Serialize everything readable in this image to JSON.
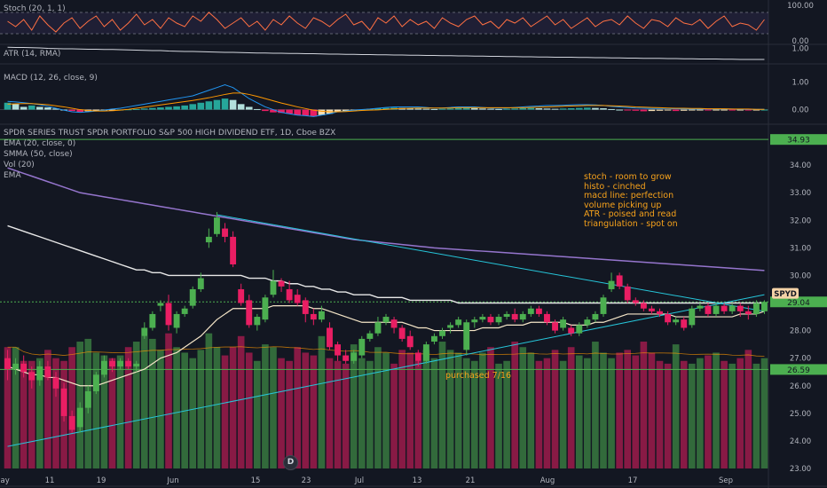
{
  "panes": {
    "stoch": {
      "label": "Stoch (20, 1, 1)",
      "scale": [
        "100.00",
        "0.00"
      ]
    },
    "atr": {
      "label": "ATR (14, RMA)",
      "scale": [
        "1.00"
      ]
    },
    "macd": {
      "label": "MACD (12, 26, close, 9)",
      "scale": [
        "1.00",
        "0.00"
      ]
    }
  },
  "main": {
    "title": "SPDR SERIES TRUST SPDR PORTFOLIO S&P 500 HIGH DIVIDEND ETF, 1D, Cboe BZX",
    "indicators": [
      "EMA (20, close, 0)",
      "SMMA (50, close)",
      "Vol (20)",
      "EMA"
    ],
    "price_ticks": [
      "34.00",
      "33.00",
      "32.00",
      "31.00",
      "30.00",
      "29.00",
      "28.00",
      "27.00",
      "26.00",
      "25.00",
      "24.00",
      "23.00"
    ],
    "levels": {
      "resistance": "34.93",
      "current": "29.04",
      "purchase": "26.59"
    },
    "symbol_tag": "SPYD",
    "annotations": [
      "stoch - room to grow",
      "histo - cinched",
      "macd line: perfection",
      "volume picking up",
      "ATR - poised and read",
      "triangulation - spot on"
    ],
    "purchase_note": "purchased 7/16",
    "event_badge": "D"
  },
  "x_axis": {
    "labels": [
      "May",
      "11",
      "19",
      "Jun",
      "15",
      "23",
      "Jul",
      "13",
      "21",
      "Aug",
      "17",
      "Sep"
    ]
  },
  "colors": {
    "background": "#131722",
    "up": "#4caf50",
    "down": "#e91e63",
    "ema": "#f5e6c8",
    "smma": "#e8e8e8",
    "ema2": "#9575cd",
    "trend": "#26c6da",
    "level": "#4caf50",
    "annotation": "#f7a21b"
  },
  "chart_data": {
    "type": "candlestick",
    "title": "SPDR SERIES TRUST SPDR PORTFOLIO S&P 500 HIGH DIVIDEND ETF, 1D, Cboe BZX",
    "symbol": "SPYD",
    "ylim": [
      23.0,
      35.0
    ],
    "candles": [
      [
        27.0,
        26.6,
        27.3,
        26.2
      ],
      [
        26.6,
        26.8,
        27.0,
        26.4
      ],
      [
        26.8,
        26.5,
        27.1,
        26.3
      ],
      [
        26.5,
        26.2,
        26.7,
        25.9
      ],
      [
        26.2,
        26.7,
        26.9,
        26.0
      ],
      [
        26.7,
        26.3,
        26.9,
        26.2
      ],
      [
        26.3,
        25.9,
        26.5,
        25.6
      ],
      [
        25.9,
        24.9,
        26.1,
        24.7
      ],
      [
        24.9,
        24.4,
        25.1,
        24.3
      ],
      [
        24.5,
        25.2,
        25.4,
        24.3
      ],
      [
        25.2,
        25.8,
        26.0,
        25.0
      ],
      [
        25.8,
        26.4,
        26.5,
        25.7
      ],
      [
        26.4,
        26.9,
        27.1,
        26.3
      ],
      [
        26.9,
        26.7,
        27.0,
        26.5
      ],
      [
        26.7,
        26.9,
        27.0,
        26.6
      ],
      [
        26.9,
        26.7,
        27.0,
        26.6
      ],
      [
        26.7,
        26.8,
        26.9,
        26.5
      ],
      [
        27.8,
        28.1,
        28.3,
        27.7
      ],
      [
        28.1,
        28.6,
        28.7,
        28.0
      ],
      [
        28.9,
        29.0,
        29.1,
        28.7
      ],
      [
        29.0,
        28.2,
        29.3,
        28.0
      ],
      [
        28.1,
        28.6,
        28.7,
        27.9
      ],
      [
        28.6,
        28.8,
        28.9,
        28.5
      ],
      [
        28.9,
        29.5,
        29.6,
        28.8
      ],
      [
        29.5,
        29.9,
        30.1,
        29.4
      ],
      [
        31.2,
        31.4,
        31.7,
        31.0
      ],
      [
        31.5,
        32.1,
        32.3,
        31.4
      ],
      [
        31.7,
        31.4,
        31.9,
        31.2
      ],
      [
        31.4,
        30.4,
        31.6,
        30.3
      ],
      [
        29.5,
        29.0,
        29.7,
        28.9
      ],
      [
        29.1,
        28.2,
        29.3,
        28.1
      ],
      [
        28.2,
        28.5,
        28.6,
        28.0
      ],
      [
        28.4,
        29.2,
        29.3,
        28.3
      ],
      [
        29.3,
        29.8,
        30.2,
        29.2
      ],
      [
        29.8,
        29.6,
        29.9,
        29.4
      ],
      [
        29.5,
        29.1,
        29.8,
        29.0
      ],
      [
        29.3,
        29.0,
        29.5,
        28.9
      ],
      [
        29.1,
        28.6,
        29.2,
        28.3
      ],
      [
        28.6,
        28.4,
        28.8,
        28.2
      ],
      [
        28.4,
        28.7,
        28.9,
        28.3
      ],
      [
        28.1,
        27.4,
        28.3,
        27.3
      ],
      [
        27.5,
        27.1,
        27.6,
        26.9
      ],
      [
        27.1,
        26.9,
        27.3,
        26.8
      ],
      [
        26.9,
        27.2,
        27.3,
        26.8
      ],
      [
        27.1,
        27.7,
        27.8,
        27.0
      ],
      [
        27.7,
        27.9,
        28.0,
        27.6
      ],
      [
        27.9,
        28.3,
        28.5,
        27.8
      ],
      [
        28.3,
        28.5,
        28.6,
        28.2
      ],
      [
        28.4,
        28.1,
        28.5,
        27.9
      ],
      [
        28.1,
        27.7,
        28.2,
        27.6
      ],
      [
        27.8,
        27.4,
        28.0,
        27.3
      ],
      [
        27.2,
        26.9,
        27.3,
        26.7
      ],
      [
        26.9,
        27.5,
        27.6,
        26.8
      ],
      [
        27.6,
        27.8,
        27.9,
        27.5
      ],
      [
        27.8,
        28.0,
        28.1,
        27.7
      ],
      [
        28.1,
        28.2,
        28.3,
        27.9
      ],
      [
        28.2,
        28.4,
        28.5,
        28.1
      ],
      [
        27.3,
        28.3,
        28.4,
        27.1
      ],
      [
        28.3,
        28.4,
        28.5,
        28.1
      ],
      [
        28.4,
        28.5,
        28.6,
        28.3
      ],
      [
        28.5,
        28.3,
        28.6,
        28.2
      ],
      [
        28.3,
        28.5,
        28.6,
        28.2
      ],
      [
        28.5,
        28.6,
        28.7,
        28.4
      ],
      [
        28.6,
        28.4,
        28.8,
        28.3
      ],
      [
        28.4,
        28.6,
        28.7,
        28.3
      ],
      [
        28.6,
        28.8,
        28.9,
        28.5
      ],
      [
        28.8,
        28.6,
        28.9,
        28.5
      ],
      [
        28.6,
        28.3,
        28.7,
        28.2
      ],
      [
        28.3,
        28.0,
        28.4,
        27.9
      ],
      [
        28.1,
        28.4,
        28.5,
        28.0
      ],
      [
        28.1,
        27.9,
        28.2,
        27.8
      ],
      [
        27.9,
        28.2,
        28.3,
        27.8
      ],
      [
        28.2,
        28.4,
        28.5,
        28.1
      ],
      [
        28.4,
        28.6,
        28.7,
        28.3
      ],
      [
        28.6,
        29.2,
        29.3,
        28.5
      ],
      [
        29.5,
        29.8,
        30.1,
        29.4
      ],
      [
        30.0,
        29.6,
        30.1,
        29.5
      ],
      [
        29.6,
        29.1,
        29.7,
        29.0
      ],
      [
        29.1,
        29.0,
        29.2,
        28.9
      ],
      [
        29.0,
        28.8,
        29.1,
        28.7
      ],
      [
        28.8,
        28.7,
        28.9,
        28.6
      ],
      [
        28.7,
        28.6,
        28.8,
        28.5
      ],
      [
        28.6,
        28.3,
        28.7,
        28.2
      ],
      [
        28.3,
        28.4,
        28.5,
        28.2
      ],
      [
        28.4,
        28.1,
        28.5,
        28.0
      ],
      [
        28.2,
        28.8,
        28.9,
        28.1
      ],
      [
        28.8,
        28.9,
        29.0,
        28.7
      ],
      [
        28.9,
        28.6,
        29.0,
        28.5
      ],
      [
        28.6,
        28.9,
        29.0,
        28.5
      ],
      [
        28.9,
        28.7,
        29.0,
        28.6
      ],
      [
        28.7,
        28.9,
        29.0,
        28.6
      ],
      [
        28.9,
        28.7,
        29.0,
        28.5
      ],
      [
        28.7,
        28.6,
        28.9,
        28.4
      ],
      [
        28.6,
        29.0,
        29.1,
        28.5
      ],
      [
        28.7,
        29.04,
        29.1,
        28.6
      ]
    ],
    "volume": [
      27.4,
      27.4,
      26.9,
      26.9,
      27.0,
      27.3,
      27.0,
      26.9,
      27.4,
      27.6,
      27.7,
      27.2,
      27.1,
      27.0,
      27.1,
      27.4,
      27.6,
      27.8,
      27.7,
      27.3,
      27.9,
      27.4,
      27.2,
      27.0,
      27.3,
      27.9,
      27.4,
      27.1,
      27.4,
      27.8,
      27.2,
      26.9,
      27.5,
      27.4,
      27.0,
      26.9,
      27.4,
      27.2,
      27.1,
      27.8,
      27.0,
      26.9,
      26.8,
      27.5,
      27.0,
      26.9,
      27.4,
      27.2,
      26.8,
      27.3,
      27.2,
      26.9,
      27.3,
      27.0,
      27.6,
      27.3,
      27.2,
      27.0,
      26.9,
      27.2,
      27.4,
      26.8,
      26.9,
      27.6,
      27.4,
      27.2,
      26.9,
      27.0,
      27.3,
      26.9,
      27.4,
      27.1,
      27.0,
      27.6,
      27.2,
      27.0,
      27.2,
      27.3,
      27.1,
      27.6,
      27.2,
      26.9,
      26.8,
      27.5,
      26.9,
      26.8,
      27.0,
      27.1,
      27.2,
      26.9,
      26.8,
      27.0,
      27.3,
      26.8,
      27.0
    ],
    "ema20": [
      26.7,
      26.6,
      26.5,
      26.4,
      26.4,
      26.3,
      26.3,
      26.2,
      26.1,
      26.0,
      26.0,
      26.0,
      26.1,
      26.2,
      26.3,
      26.4,
      26.5,
      26.6,
      26.8,
      27.0,
      27.1,
      27.2,
      27.4,
      27.6,
      27.8,
      28.1,
      28.4,
      28.6,
      28.8,
      28.8,
      28.8,
      28.8,
      28.8,
      28.9,
      28.9,
      28.9,
      28.9,
      28.9,
      28.8,
      28.8,
      28.7,
      28.6,
      28.5,
      28.4,
      28.3,
      28.3,
      28.3,
      28.3,
      28.3,
      28.3,
      28.2,
      28.1,
      28.1,
      28.0,
      28.0,
      28.0,
      28.0,
      28.0,
      28.0,
      28.1,
      28.1,
      28.1,
      28.2,
      28.2,
      28.2,
      28.3,
      28.3,
      28.3,
      28.3,
      28.3,
      28.2,
      28.2,
      28.2,
      28.3,
      28.3,
      28.4,
      28.5,
      28.6,
      28.6,
      28.6,
      28.6,
      28.6,
      28.6,
      28.5,
      28.5,
      28.5,
      28.5,
      28.5,
      28.5,
      28.5,
      28.5,
      28.6,
      28.6,
      28.6,
      28.7
    ],
    "smma50": [
      31.8,
      31.7,
      31.6,
      31.5,
      31.4,
      31.3,
      31.2,
      31.1,
      31.0,
      30.9,
      30.8,
      30.7,
      30.6,
      30.5,
      30.4,
      30.3,
      30.2,
      30.2,
      30.1,
      30.1,
      30.0,
      30.0,
      30.0,
      30.0,
      30.0,
      30.0,
      30.0,
      30.0,
      30.0,
      30.0,
      29.9,
      29.9,
      29.9,
      29.8,
      29.8,
      29.7,
      29.7,
      29.6,
      29.6,
      29.5,
      29.5,
      29.4,
      29.4,
      29.3,
      29.3,
      29.3,
      29.2,
      29.2,
      29.2,
      29.2,
      29.1,
      29.1,
      29.1,
      29.1,
      29.1,
      29.1,
      29.0,
      29.0,
      29.0,
      29.0,
      29.0,
      29.0,
      29.0,
      29.0,
      29.0,
      29.0,
      29.0,
      29.0,
      29.0,
      29.0,
      29.0,
      29.0,
      29.0,
      29.0,
      29.0,
      29.0,
      29.0,
      29.0,
      29.0,
      29.0,
      29.0,
      29.0,
      29.0,
      29.0,
      29.0,
      29.0,
      29.0,
      29.0,
      29.0,
      29.0,
      29.0,
      29.0,
      29.0,
      29.0,
      29.0
    ],
    "ema_long": [
      33.9,
      33.8,
      33.7,
      33.6,
      33.5,
      33.4,
      33.3,
      33.2,
      33.1,
      33.0,
      32.95,
      32.9,
      32.85,
      32.8,
      32.75,
      32.7,
      32.65,
      32.6,
      32.55,
      32.5,
      32.45,
      32.4,
      32.35,
      32.3,
      32.25,
      32.2,
      32.15,
      32.1,
      32.05,
      32.0,
      31.95,
      31.9,
      31.85,
      31.8,
      31.75,
      31.7,
      31.65,
      31.6,
      31.55,
      31.5,
      31.45,
      31.4,
      31.35,
      31.3,
      31.27,
      31.24,
      31.21,
      31.18,
      31.15,
      31.12,
      31.09,
      31.06,
      31.03,
      31.0,
      30.98,
      30.96,
      30.94,
      30.92,
      30.9,
      30.88,
      30.86,
      30.84,
      30.82,
      30.8,
      30.78,
      30.76,
      30.74,
      30.72,
      30.7,
      30.68,
      30.66,
      30.64,
      30.62,
      30.6,
      30.58,
      30.56,
      30.54,
      30.52,
      30.5,
      30.48,
      30.46,
      30.44,
      30.42,
      30.4,
      30.38,
      30.36,
      30.34,
      30.32,
      30.3,
      30.28,
      30.26,
      30.24,
      30.22,
      30.2,
      30.18
    ],
    "levels": [
      34.93,
      29.04,
      26.59
    ],
    "stoch_ylim": [
      0,
      100
    ],
    "stoch": [
      55,
      40,
      60,
      30,
      70,
      45,
      25,
      50,
      65,
      35,
      55,
      70,
      40,
      60,
      30,
      50,
      75,
      45,
      60,
      35,
      65,
      50,
      40,
      70,
      55,
      80,
      60,
      35,
      50,
      65,
      40,
      55,
      30,
      60,
      45,
      70,
      50,
      35,
      65,
      55,
      40,
      60,
      75,
      45,
      55,
      30,
      65,
      50,
      70,
      40,
      60,
      45,
      55,
      35,
      65,
      50,
      40,
      60,
      70,
      45,
      55,
      35,
      60,
      50,
      65,
      40,
      55,
      70,
      45,
      60,
      35,
      50,
      65,
      40,
      55,
      60,
      45,
      70,
      50,
      35,
      60,
      55,
      40,
      65,
      50,
      45,
      60,
      35,
      55,
      70,
      40,
      50,
      45,
      30,
      60
    ],
    "atr": [
      1.05,
      1.04,
      1.04,
      1.03,
      1.02,
      1.0,
      0.99,
      0.98,
      0.98,
      0.97,
      0.96,
      0.96,
      0.95,
      0.95,
      0.94,
      0.93,
      0.92,
      0.91,
      0.9,
      0.9,
      0.88,
      0.87,
      0.86,
      0.86,
      0.85,
      0.84,
      0.83,
      0.82,
      0.82,
      0.81,
      0.8,
      0.79,
      0.79,
      0.78,
      0.78,
      0.77,
      0.77,
      0.76,
      0.76,
      0.75,
      0.74,
      0.74,
      0.73,
      0.73,
      0.72,
      0.72,
      0.71,
      0.71,
      0.7,
      0.7,
      0.69,
      0.69,
      0.68,
      0.68,
      0.67,
      0.67,
      0.66,
      0.66,
      0.65,
      0.65,
      0.64,
      0.64,
      0.63,
      0.63,
      0.62,
      0.62,
      0.61,
      0.61,
      0.6,
      0.6,
      0.6,
      0.59,
      0.59,
      0.58,
      0.58,
      0.57,
      0.57,
      0.56,
      0.56,
      0.55,
      0.55,
      0.55,
      0.54,
      0.54,
      0.53,
      0.53,
      0.52,
      0.52,
      0.52,
      0.51,
      0.51,
      0.5,
      0.5,
      0.5,
      0.5
    ],
    "macd_ylim": [
      -0.4,
      1.4
    ],
    "macd_hist": [
      0.25,
      0.2,
      0.1,
      0.15,
      0.1,
      0.08,
      0.04,
      0.0,
      -0.05,
      -0.08,
      -0.06,
      -0.05,
      -0.03,
      -0.02,
      0.0,
      0.01,
      0.02,
      0.04,
      0.06,
      0.08,
      0.1,
      0.12,
      0.15,
      0.2,
      0.25,
      0.3,
      0.35,
      0.4,
      0.35,
      0.2,
      0.1,
      0.02,
      -0.05,
      -0.1,
      -0.12,
      -0.15,
      -0.2,
      -0.22,
      -0.25,
      -0.2,
      -0.15,
      -0.08,
      -0.05,
      -0.02,
      0.0,
      0.03,
      0.05,
      0.06,
      0.07,
      0.06,
      0.05,
      0.04,
      0.03,
      0.02,
      0.03,
      0.04,
      0.05,
      0.06,
      0.05,
      0.04,
      0.03,
      0.02,
      0.03,
      0.04,
      0.05,
      0.06,
      0.05,
      0.04,
      0.03,
      0.04,
      0.05,
      0.06,
      0.07,
      0.06,
      0.05,
      0.02,
      0.0,
      -0.02,
      -0.04,
      -0.06,
      -0.05,
      -0.04,
      -0.03,
      -0.05,
      -0.04,
      -0.03,
      -0.02,
      -0.03,
      -0.02,
      -0.01,
      -0.02,
      -0.01,
      -0.02,
      -0.01,
      0.0
    ],
    "macd_line": [
      0.3,
      0.28,
      0.25,
      0.22,
      0.18,
      0.12,
      0.05,
      -0.02,
      -0.08,
      -0.1,
      -0.08,
      -0.05,
      -0.02,
      0.02,
      0.05,
      0.1,
      0.15,
      0.2,
      0.25,
      0.3,
      0.35,
      0.4,
      0.45,
      0.5,
      0.6,
      0.7,
      0.8,
      0.9,
      0.8,
      0.6,
      0.4,
      0.25,
      0.1,
      0.0,
      -0.1,
      -0.15,
      -0.2,
      -0.22,
      -0.25,
      -0.2,
      -0.15,
      -0.08,
      -0.05,
      -0.02,
      0.0,
      0.02,
      0.05,
      0.08,
      0.1,
      0.1,
      0.1,
      0.1,
      0.08,
      0.05,
      0.06,
      0.08,
      0.1,
      0.1,
      0.1,
      0.08,
      0.06,
      0.05,
      0.06,
      0.08,
      0.1,
      0.12,
      0.13,
      0.15,
      0.15,
      0.16,
      0.17,
      0.18,
      0.18,
      0.17,
      0.15,
      0.12,
      0.1,
      0.08,
      0.06,
      0.05,
      0.04,
      0.04,
      0.04,
      0.03,
      0.03,
      0.02,
      0.02,
      0.02,
      0.02,
      0.02,
      0.02,
      0.01,
      0.01,
      0.01,
      0.01
    ],
    "macd_signal": [
      0.2,
      0.21,
      0.22,
      0.22,
      0.2,
      0.18,
      0.14,
      0.1,
      0.05,
      0.0,
      -0.03,
      -0.05,
      -0.05,
      -0.04,
      -0.02,
      0.01,
      0.05,
      0.09,
      0.13,
      0.17,
      0.21,
      0.25,
      0.29,
      0.33,
      0.38,
      0.43,
      0.49,
      0.55,
      0.6,
      0.6,
      0.55,
      0.48,
      0.4,
      0.32,
      0.24,
      0.17,
      0.1,
      0.04,
      -0.02,
      -0.06,
      -0.08,
      -0.08,
      -0.07,
      -0.05,
      -0.03,
      -0.02,
      -0.01,
      0.01,
      0.03,
      0.04,
      0.05,
      0.06,
      0.06,
      0.06,
      0.06,
      0.06,
      0.07,
      0.07,
      0.07,
      0.07,
      0.07,
      0.07,
      0.07,
      0.07,
      0.07,
      0.08,
      0.09,
      0.1,
      0.11,
      0.12,
      0.13,
      0.14,
      0.15,
      0.15,
      0.15,
      0.14,
      0.13,
      0.12,
      0.1,
      0.09,
      0.08,
      0.07,
      0.06,
      0.05,
      0.05,
      0.04,
      0.04,
      0.03,
      0.03,
      0.03,
      0.02,
      0.02,
      0.02,
      0.01,
      0.01
    ],
    "trendlines": [
      {
        "from": [
          0,
          23.8
        ],
        "to": [
          94,
          29.3
        ]
      },
      {
        "from": [
          26,
          32.2
        ],
        "to": [
          94,
          28.7
        ]
      }
    ]
  }
}
